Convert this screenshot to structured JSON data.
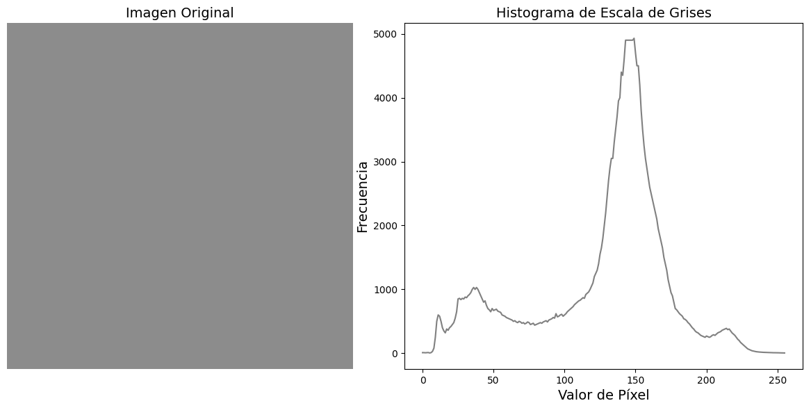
{
  "chart_data": [
    {
      "type": "image",
      "title": "Imagen Original"
    },
    {
      "type": "line",
      "title": "Histograma de Escala de Grises",
      "x_label": "Valor de Píxel",
      "y_label": "Frecuencia",
      "color": "gray",
      "x": [
        0,
        1,
        2,
        3,
        4,
        5,
        6,
        7,
        8,
        9,
        10,
        11,
        12,
        13,
        14,
        15,
        16,
        17,
        18,
        19,
        20,
        21,
        22,
        23,
        24,
        25,
        26,
        27,
        28,
        29,
        30,
        31,
        32,
        33,
        34,
        35,
        36,
        37,
        38,
        39,
        40,
        41,
        42,
        43,
        44,
        45,
        46,
        47,
        48,
        49,
        50,
        51,
        52,
        53,
        54,
        55,
        56,
        57,
        58,
        59,
        60,
        61,
        62,
        63,
        64,
        65,
        66,
        67,
        68,
        69,
        70,
        71,
        72,
        73,
        74,
        75,
        76,
        77,
        78,
        79,
        80,
        81,
        82,
        83,
        84,
        85,
        86,
        87,
        88,
        89,
        90,
        91,
        92,
        93,
        94,
        95,
        96,
        97,
        98,
        99,
        100,
        101,
        102,
        103,
        104,
        105,
        106,
        107,
        108,
        109,
        110,
        111,
        112,
        113,
        114,
        115,
        116,
        117,
        118,
        119,
        120,
        121,
        122,
        123,
        124,
        125,
        126,
        127,
        128,
        129,
        130,
        131,
        132,
        133,
        134,
        135,
        136,
        137,
        138,
        139,
        140,
        141,
        142,
        143,
        144,
        145,
        146,
        147,
        148,
        149,
        150,
        151,
        152,
        153,
        154,
        155,
        156,
        157,
        158,
        159,
        160,
        161,
        162,
        163,
        164,
        165,
        166,
        167,
        168,
        169,
        170,
        171,
        172,
        173,
        174,
        175,
        176,
        177,
        178,
        179,
        180,
        181,
        182,
        183,
        184,
        185,
        186,
        187,
        188,
        189,
        190,
        191,
        192,
        193,
        194,
        195,
        196,
        197,
        198,
        199,
        200,
        201,
        202,
        203,
        204,
        205,
        206,
        207,
        208,
        209,
        210,
        211,
        212,
        213,
        214,
        215,
        216,
        217,
        218,
        219,
        220,
        221,
        222,
        223,
        224,
        225,
        226,
        227,
        228,
        229,
        230,
        231,
        232,
        233,
        234,
        235,
        236,
        237,
        238,
        239,
        240,
        241,
        242,
        243,
        244,
        245,
        246,
        247,
        248,
        249,
        250,
        251,
        252,
        253,
        254,
        255
      ],
      "values": [
        10,
        10,
        8,
        10,
        12,
        5,
        10,
        30,
        80,
        250,
        500,
        600,
        580,
        500,
        400,
        350,
        320,
        380,
        360,
        400,
        420,
        450,
        480,
        550,
        650,
        850,
        860,
        840,
        860,
        850,
        880,
        870,
        900,
        920,
        950,
        1000,
        1030,
        1000,
        1030,
        1000,
        950,
        900,
        850,
        800,
        820,
        750,
        700,
        680,
        650,
        700,
        670,
        680,
        690,
        660,
        650,
        640,
        600,
        590,
        580,
        560,
        550,
        540,
        530,
        520,
        500,
        510,
        490,
        480,
        500,
        490,
        470,
        480,
        460,
        470,
        490,
        480,
        450,
        460,
        470,
        440,
        450,
        460,
        470,
        480,
        470,
        490,
        500,
        510,
        490,
        520,
        530,
        540,
        560,
        550,
        620,
        570,
        580,
        600,
        610,
        580,
        600,
        620,
        650,
        670,
        690,
        710,
        730,
        760,
        780,
        800,
        820,
        830,
        850,
        870,
        860,
        920,
        940,
        960,
        1000,
        1050,
        1100,
        1200,
        1250,
        1300,
        1400,
        1550,
        1650,
        1800,
        2000,
        2200,
        2450,
        2700,
        2900,
        3050,
        3050,
        3300,
        3500,
        3700,
        3950,
        4000,
        4400,
        4350,
        4600,
        4900,
        4900,
        4900,
        4900,
        4900,
        4900,
        4930,
        4700,
        4500,
        4500,
        4200,
        3800,
        3500,
        3250,
        3050,
        2900,
        2750,
        2600,
        2500,
        2400,
        2300,
        2200,
        2100,
        1950,
        1850,
        1750,
        1650,
        1500,
        1400,
        1300,
        1150,
        1050,
        950,
        900,
        800,
        700,
        680,
        650,
        620,
        600,
        580,
        540,
        530,
        510,
        480,
        460,
        430,
        400,
        380,
        350,
        330,
        320,
        300,
        280,
        270,
        260,
        250,
        270,
        260,
        250,
        260,
        280,
        290,
        280,
        300,
        320,
        330,
        340,
        360,
        370,
        380,
        390,
        370,
        380,
        350,
        320,
        300,
        280,
        250,
        220,
        200,
        170,
        150,
        130,
        110,
        90,
        70,
        60,
        50,
        40,
        35,
        30,
        25,
        22,
        20,
        18,
        16,
        15,
        14,
        13,
        12,
        11,
        10,
        10,
        9,
        9,
        8,
        8,
        7,
        7,
        6,
        6,
        5
      ],
      "xlim": [
        -12.75,
        267.75
      ],
      "ylim": [
        -246,
        5170
      ],
      "xticks": [
        0,
        50,
        100,
        150,
        200,
        250
      ],
      "yticks": [
        0,
        1000,
        2000,
        3000,
        4000,
        5000
      ]
    }
  ]
}
